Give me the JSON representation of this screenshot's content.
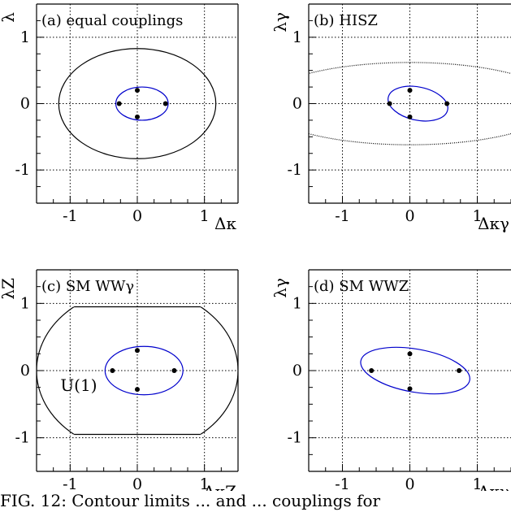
{
  "chart_data": [
    {
      "type": "scatter",
      "title": "(a) equal couplings",
      "xlabel": "Δκ",
      "ylabel": "λ",
      "xlim": [
        -1.5,
        1.5
      ],
      "ylim": [
        -1.5,
        1.5
      ],
      "xticks": [
        "-1",
        "0",
        "1"
      ],
      "yticks": [
        "1",
        "0",
        "-1"
      ],
      "grid": "dotted at ±1 and 0",
      "points": [
        [
          0,
          0.2
        ],
        [
          -0.27,
          0
        ],
        [
          0.42,
          0
        ],
        [
          0,
          -0.2
        ]
      ],
      "ellipses": [
        {
          "color": "#0000cc",
          "cx": 0.07,
          "cy": 0,
          "rx": 0.39,
          "ry": 0.25,
          "tilt_deg": 0
        },
        {
          "color": "#000000",
          "cx": 0,
          "cy": 0,
          "rx": 1.17,
          "ry": 0.83,
          "tilt_deg": 0
        }
      ]
    },
    {
      "type": "scatter",
      "title": "(b) HISZ",
      "xlabel": "Δκγ",
      "ylabel": "λγ",
      "xlim": [
        -1.5,
        1.5
      ],
      "ylim": [
        -1.5,
        1.5
      ],
      "xticks": [
        "-1",
        "0",
        "1"
      ],
      "yticks": [
        "1",
        "0",
        "-1"
      ],
      "grid": "dotted at ±1 and 0",
      "points": [
        [
          0,
          0.2
        ],
        [
          -0.3,
          0
        ],
        [
          0.55,
          0
        ],
        [
          0,
          -0.2
        ]
      ],
      "ellipses": [
        {
          "color": "#0000cc",
          "cx": 0.12,
          "cy": 0,
          "rx": 0.45,
          "ry": 0.25,
          "tilt_deg": -12
        },
        {
          "color": "#000000",
          "dashed": true,
          "cx": 0,
          "cy": 0,
          "rx": 2.2,
          "ry": 0.62,
          "tilt_deg": 0
        }
      ]
    },
    {
      "type": "scatter",
      "title": "(c) SM WWγ",
      "xlabel": "ΔκZ",
      "ylabel": "λZ",
      "xlim": [
        -1.5,
        1.5
      ],
      "ylim": [
        -1.5,
        1.5
      ],
      "xticks": [
        "-1",
        "0",
        "1"
      ],
      "yticks": [
        "1",
        "0",
        "-1"
      ],
      "grid": "dotted at ±1 and 0",
      "points": [
        [
          0,
          0.3
        ],
        [
          -0.37,
          0
        ],
        [
          0.55,
          0
        ],
        [
          0,
          -0.28
        ]
      ],
      "ellipses": [
        {
          "color": "#0000cc",
          "cx": 0.1,
          "cy": 0,
          "rx": 0.58,
          "ry": 0.36,
          "tilt_deg": 0
        }
      ],
      "outer_contour": {
        "color": "#000000",
        "cx": 0,
        "cy": 0,
        "rx": 1.5,
        "ry": 1.22,
        "clip_y": 0.95
      },
      "annotations": [
        {
          "text": "U(1)",
          "x": -1,
          "y": 0
        }
      ]
    },
    {
      "type": "scatter",
      "title": "(d) SM WWZ",
      "xlabel": "Δκγ",
      "ylabel": "λγ",
      "xlim": [
        -1.5,
        1.5
      ],
      "ylim": [
        -1.5,
        1.5
      ],
      "xticks": [
        "-1",
        "0",
        "1"
      ],
      "yticks": [
        "1",
        "0",
        "-1"
      ],
      "grid": "dotted at ±1 and 0",
      "points": [
        [
          0,
          0.25
        ],
        [
          -0.57,
          0
        ],
        [
          0.73,
          0
        ],
        [
          0,
          -0.27
        ]
      ],
      "ellipses": [
        {
          "color": "#0000cc",
          "cx": 0.08,
          "cy": 0,
          "rx": 0.82,
          "ry": 0.32,
          "tilt_deg": -10
        }
      ]
    }
  ],
  "caption": "FIG. 12: Contour limits ... and ... couplings for"
}
